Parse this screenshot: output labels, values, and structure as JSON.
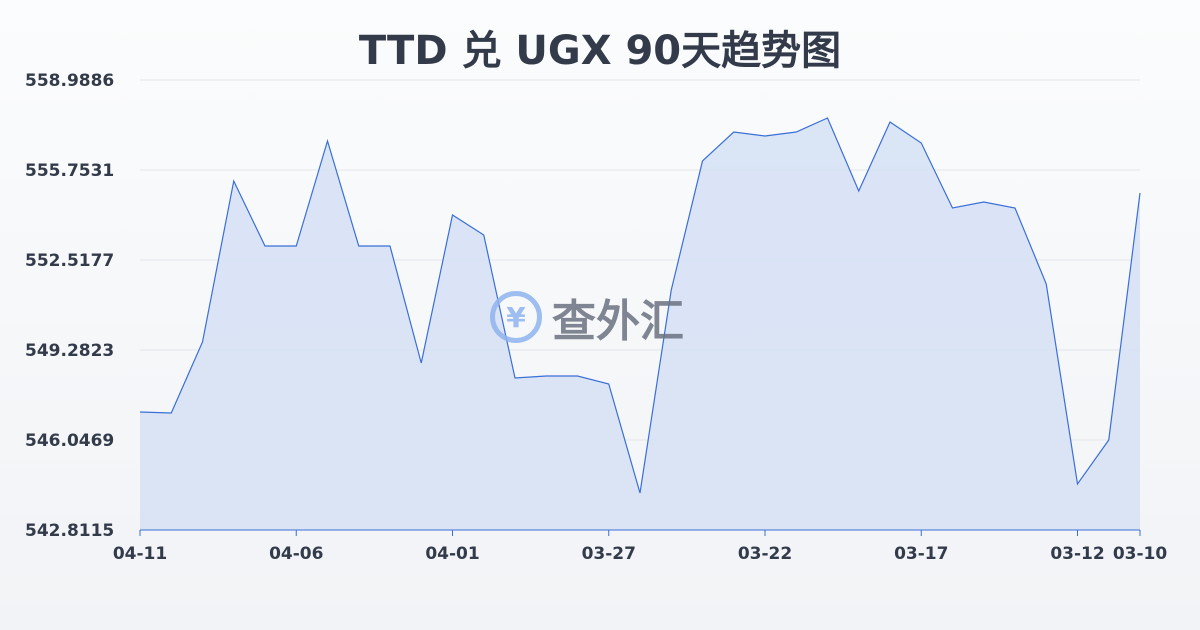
{
  "chart_data": {
    "type": "area",
    "title": "TTD 兑 UGX 90天趋势图",
    "x": [
      "04-11",
      "04-10",
      "04-09",
      "04-08",
      "04-07",
      "04-06",
      "04-05",
      "04-04",
      "04-03",
      "04-02",
      "04-01",
      "03-31",
      "03-30",
      "03-29",
      "03-28",
      "03-27",
      "03-26",
      "03-25",
      "03-24",
      "03-23",
      "03-22",
      "03-21",
      "03-20",
      "03-19",
      "03-18",
      "03-17",
      "03-16",
      "03-15",
      "03-14",
      "03-13",
      "03-12",
      "03-11",
      "03-10"
    ],
    "values": [
      547.054,
      547.018,
      549.57,
      555.358,
      553.021,
      553.021,
      556.796,
      553.021,
      553.021,
      548.815,
      554.135,
      553.417,
      548.276,
      548.348,
      548.348,
      548.06,
      544.142,
      551.44,
      556.077,
      557.119,
      556.976,
      557.119,
      557.623,
      554.998,
      557.479,
      556.724,
      554.387,
      554.603,
      554.387,
      551.655,
      544.465,
      546.047,
      554.926
    ],
    "x_ticks": [
      "04-11",
      "04-06",
      "04-01",
      "03-27",
      "03-22",
      "03-17",
      "03-12",
      "03-10"
    ],
    "y_ticks": [
      "558.9886",
      "555.7531",
      "552.5177",
      "549.2823",
      "546.0469",
      "542.8115"
    ],
    "ylim": [
      542.8115,
      558.9886
    ],
    "grid": true,
    "colors": {
      "line": "#3a6fd8",
      "fill": "#d5e0f5"
    }
  },
  "watermark": {
    "symbol": "¥",
    "text": "查外汇"
  }
}
